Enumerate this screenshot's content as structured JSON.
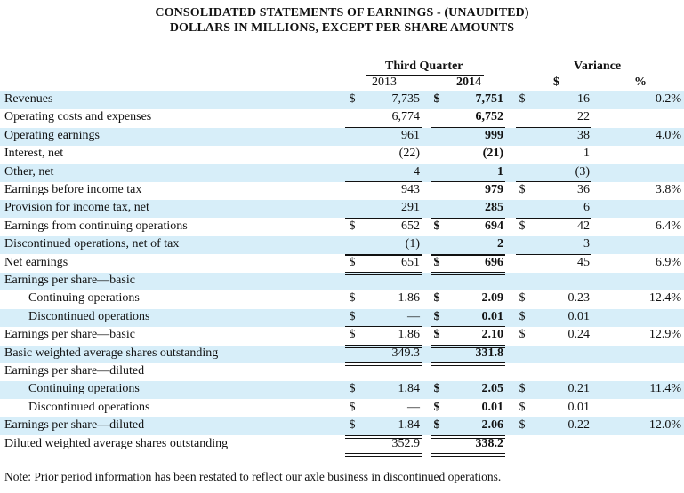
{
  "title_line1": "CONSOLIDATED STATEMENTS OF EARNINGS - (UNAUDITED)",
  "title_line2": "DOLLARS IN MILLIONS, EXCEPT PER SHARE AMOUNTS",
  "headers": {
    "third_quarter": "Third Quarter",
    "year_2013": "2013",
    "year_2014": "2014",
    "variance": "Variance",
    "variance_dollar": "$",
    "variance_pct": "%"
  },
  "rows": [
    {
      "label": "Revenues",
      "indent": false,
      "shaded": true,
      "cur1": "$",
      "v2013": "7,735",
      "cur2": "$",
      "v2014": "7,751",
      "cur3": "$",
      "var_dollar": "16",
      "var_pct": "0.2%"
    },
    {
      "label": "Operating costs and expenses",
      "indent": false,
      "shaded": false,
      "cur1": "",
      "v2013": "6,774",
      "cur2": "",
      "v2014": "6,752",
      "cur3": "",
      "var_dollar": "22",
      "var_pct": ""
    },
    {
      "label": "Operating earnings",
      "indent": false,
      "shaded": true,
      "cur1": "",
      "v2013": "961",
      "cur2": "",
      "v2014": "999",
      "cur3": "",
      "var_dollar": "38",
      "var_pct": "4.0%"
    },
    {
      "label": "Interest, net",
      "indent": false,
      "shaded": false,
      "cur1": "",
      "v2013": "(22)",
      "cur2": "",
      "v2014": "(21)",
      "cur3": "",
      "var_dollar": "1",
      "var_pct": ""
    },
    {
      "label": "Other, net",
      "indent": false,
      "shaded": true,
      "cur1": "",
      "v2013": "4",
      "cur2": "",
      "v2014": "1",
      "cur3": "",
      "var_dollar": "(3)",
      "var_pct": ""
    },
    {
      "label": "Earnings before income tax",
      "indent": false,
      "shaded": false,
      "cur1": "",
      "v2013": "943",
      "cur2": "",
      "v2014": "979",
      "cur3": "$",
      "var_dollar": "36",
      "var_pct": "3.8%"
    },
    {
      "label": "Provision for income tax, net",
      "indent": false,
      "shaded": true,
      "cur1": "",
      "v2013": "291",
      "cur2": "",
      "v2014": "285",
      "cur3": "",
      "var_dollar": "6",
      "var_pct": ""
    },
    {
      "label": "Earnings from continuing operations",
      "indent": false,
      "shaded": false,
      "cur1": "$",
      "v2013": "652",
      "cur2": "$",
      "v2014": "694",
      "cur3": "$",
      "var_dollar": "42",
      "var_pct": "6.4%"
    },
    {
      "label": "Discontinued operations, net of tax",
      "indent": false,
      "shaded": true,
      "cur1": "",
      "v2013": "(1)",
      "cur2": "",
      "v2014": "2",
      "cur3": "",
      "var_dollar": "3",
      "var_pct": ""
    },
    {
      "label": "Net earnings",
      "indent": false,
      "shaded": false,
      "cur1": "$",
      "v2013": "651",
      "cur2": "$",
      "v2014": "696",
      "cur3": "",
      "var_dollar": "45",
      "var_pct": "6.9%"
    },
    {
      "label": "Earnings per share—basic",
      "indent": false,
      "shaded": true,
      "cur1": "",
      "v2013": "",
      "cur2": "",
      "v2014": "",
      "cur3": "",
      "var_dollar": "",
      "var_pct": ""
    },
    {
      "label": "Continuing operations",
      "indent": true,
      "shaded": false,
      "cur1": "$",
      "v2013": "1.86",
      "cur2": "$",
      "v2014": "2.09",
      "cur3": "$",
      "var_dollar": "0.23",
      "var_pct": "12.4%"
    },
    {
      "label": "Discontinued operations",
      "indent": true,
      "shaded": true,
      "cur1": "$",
      "v2013": "—",
      "cur2": "$",
      "v2014": "0.01",
      "cur3": "$",
      "var_dollar": "0.01",
      "var_pct": ""
    },
    {
      "label": "Earnings per share—basic",
      "indent": false,
      "shaded": false,
      "cur1": "$",
      "v2013": "1.86",
      "cur2": "$",
      "v2014": "2.10",
      "cur3": "$",
      "var_dollar": "0.24",
      "var_pct": "12.9%"
    },
    {
      "label": "Basic weighted average shares outstanding",
      "indent": false,
      "shaded": true,
      "cur1": "",
      "v2013": "349.3",
      "cur2": "",
      "v2014": "331.8",
      "cur3": "",
      "var_dollar": "",
      "var_pct": ""
    },
    {
      "label": "Earnings per share—diluted",
      "indent": false,
      "shaded": false,
      "cur1": "",
      "v2013": "",
      "cur2": "",
      "v2014": "",
      "cur3": "",
      "var_dollar": "",
      "var_pct": ""
    },
    {
      "label": "Continuing operations",
      "indent": true,
      "shaded": true,
      "cur1": "$",
      "v2013": "1.84",
      "cur2": "$",
      "v2014": "2.05",
      "cur3": "$",
      "var_dollar": "0.21",
      "var_pct": "11.4%"
    },
    {
      "label": "Discontinued operations",
      "indent": true,
      "shaded": false,
      "cur1": "$",
      "v2013": "—",
      "cur2": "$",
      "v2014": "0.01",
      "cur3": "$",
      "var_dollar": "0.01",
      "var_pct": ""
    },
    {
      "label": "Earnings per share—diluted",
      "indent": false,
      "shaded": true,
      "cur1": "$",
      "v2013": "1.84",
      "cur2": "$",
      "v2014": "2.06",
      "cur3": "$",
      "var_dollar": "0.22",
      "var_pct": "12.0%"
    },
    {
      "label": "Diluted weighted average shares outstanding",
      "indent": false,
      "shaded": false,
      "cur1": "",
      "v2013": "352.9",
      "cur2": "",
      "v2014": "338.2",
      "cur3": "",
      "var_dollar": "",
      "var_pct": ""
    }
  ],
  "note": "Note: Prior period information has been restated to reflect our axle business in discontinued operations."
}
